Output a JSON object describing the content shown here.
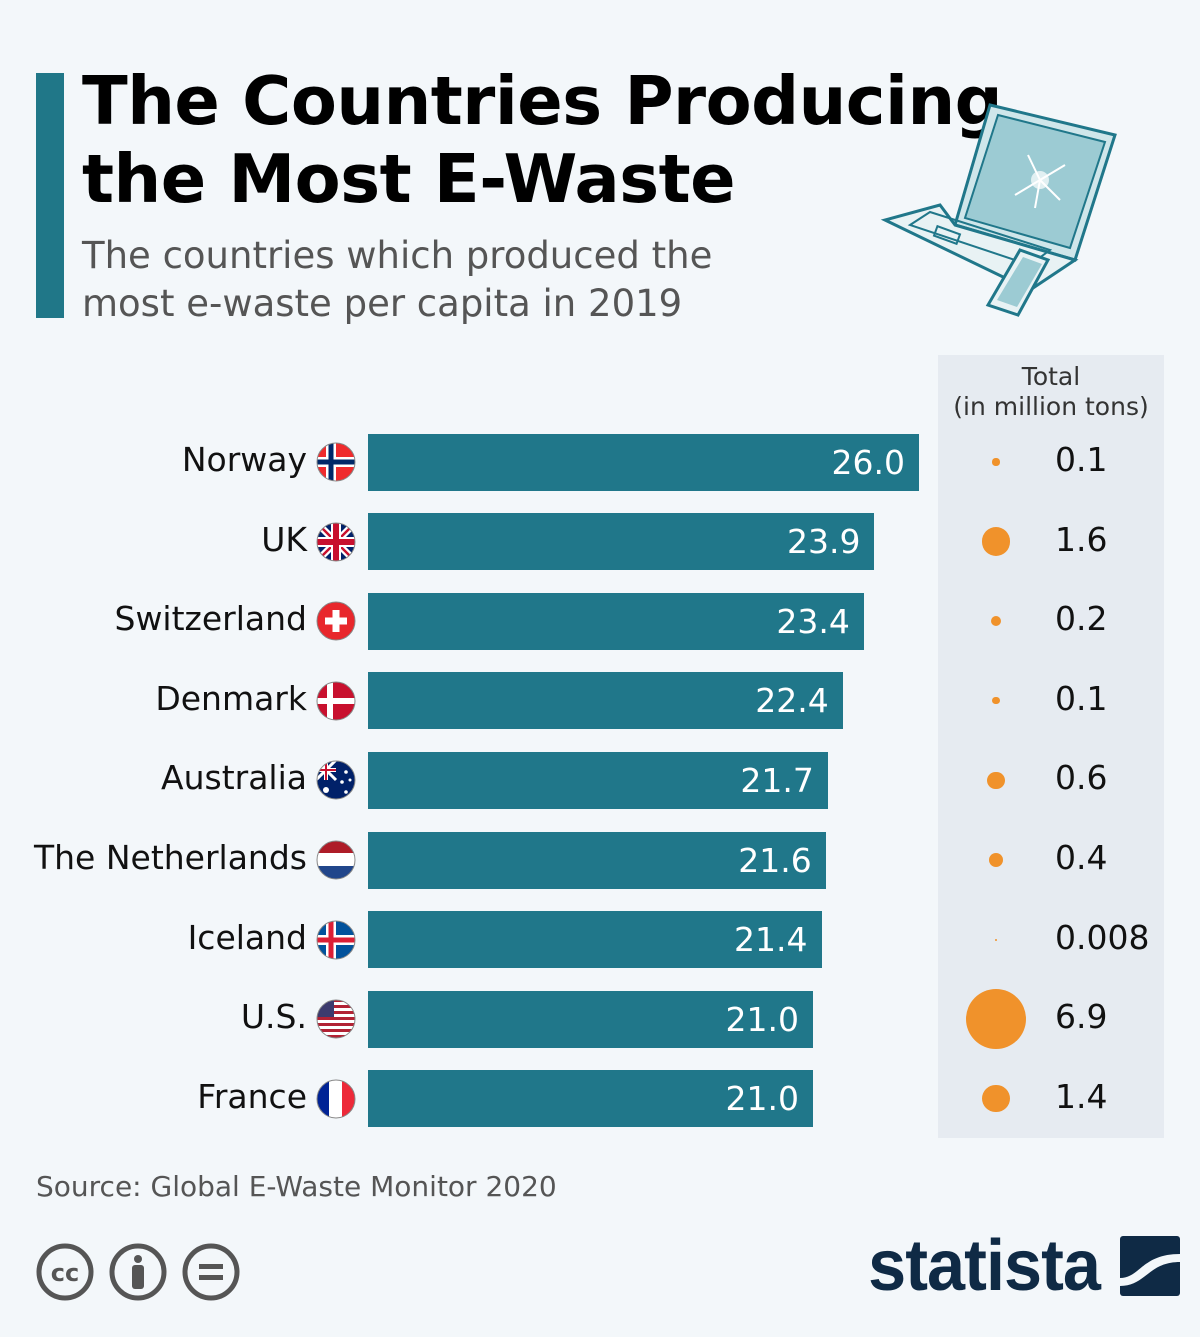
{
  "title_line1": "The Countries Producing",
  "title_line2": "the Most E-Waste",
  "subtitle_line1": "The countries which produced the",
  "subtitle_line2": "most e-waste per capita in 2019",
  "panel_header_line1": "Total",
  "panel_header_line2": "(in million tons)",
  "source": "Source: Global E-Waste Monitor 2020",
  "brand": "statista",
  "colors": {
    "bar": "#20778a",
    "bubble": "#f0922b",
    "accent": "#207788",
    "panel": "#e6ebf1",
    "brand": "#0f2a45"
  },
  "chart_data": {
    "type": "bar",
    "orientation": "horizontal",
    "categories": [
      "Norway",
      "UK",
      "Switzerland",
      "Denmark",
      "Australia",
      "The Netherlands",
      "Iceland",
      "U.S.",
      "France"
    ],
    "values": [
      26.0,
      23.9,
      23.4,
      22.4,
      21.7,
      21.6,
      21.4,
      21.0,
      21.0
    ],
    "value_labels": [
      "26.0",
      "23.9",
      "23.4",
      "22.4",
      "21.7",
      "21.6",
      "21.4",
      "21.0",
      "21.0"
    ],
    "totals": [
      0.1,
      1.6,
      0.2,
      0.1,
      0.6,
      0.4,
      0.008,
      6.9,
      1.4
    ],
    "total_labels": [
      "0.1",
      "1.6",
      "0.2",
      "0.1",
      "0.6",
      "0.4",
      "0.008",
      "6.9",
      "1.4"
    ],
    "flags": [
      "norway-flag",
      "uk-flag",
      "switzerland-flag",
      "denmark-flag",
      "australia-flag",
      "netherlands-flag",
      "iceland-flag",
      "us-flag",
      "france-flag"
    ],
    "xlim": [
      0,
      26
    ]
  },
  "license_icons": [
    "cc-icon",
    "attribution-icon",
    "no-derivatives-icon"
  ]
}
